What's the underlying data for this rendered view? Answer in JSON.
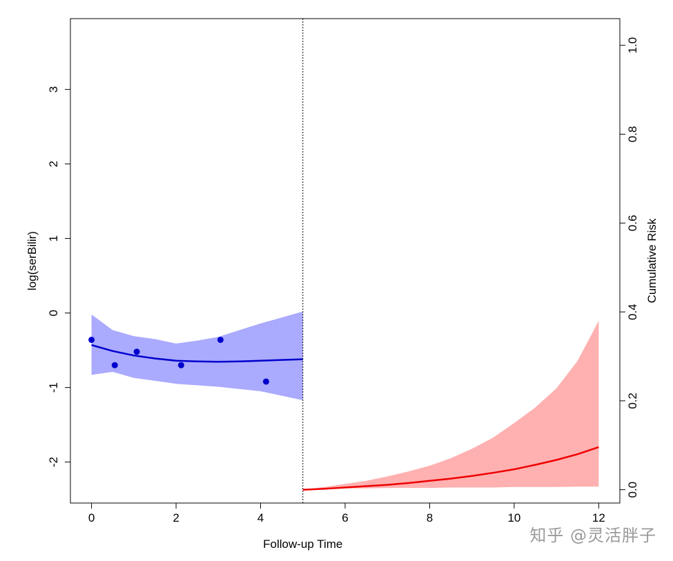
{
  "chart_data": {
    "type": "line",
    "title": "",
    "xlabel": "Follow-up Time",
    "ylabel_left": "log(serBilir)",
    "ylabel_right": "Cumulative Risk",
    "xlim": [
      -0.5,
      12.5
    ],
    "ylim_left": [
      -2.55,
      3.95
    ],
    "ylim_right": [
      -0.03,
      1.06
    ],
    "x_ticks": [
      0,
      2,
      4,
      6,
      8,
      10,
      12
    ],
    "y_ticks_left": [
      -2,
      -1,
      0,
      1,
      2,
      3
    ],
    "y_ticks_right": [
      0.0,
      0.2,
      0.4,
      0.6,
      0.8,
      1.0
    ],
    "y_tick_labels_right": [
      "0.0",
      "0.2",
      "0.4",
      "0.6",
      "0.8",
      "1.0"
    ],
    "cutoff_time": 5,
    "grid": false,
    "observations": {
      "color": "#0000cc",
      "x": [
        0,
        0.55,
        1.07,
        2.12,
        3.05,
        4.13
      ],
      "y": [
        -0.36,
        -0.7,
        -0.52,
        -0.7,
        -0.36,
        -0.92
      ]
    },
    "longitudinal_fit": {
      "color": "#0000cc",
      "band_color": "#aaaaff",
      "x": [
        0,
        0.5,
        1,
        1.5,
        2,
        2.5,
        3,
        3.5,
        4,
        4.5,
        5
      ],
      "y": [
        -0.43,
        -0.51,
        -0.57,
        -0.61,
        -0.64,
        -0.65,
        -0.655,
        -0.65,
        -0.64,
        -0.63,
        -0.62
      ],
      "lower": [
        -0.83,
        -0.79,
        -0.87,
        -0.91,
        -0.95,
        -0.97,
        -0.99,
        -1.02,
        -1.05,
        -1.11,
        -1.17
      ],
      "upper": [
        -0.02,
        -0.23,
        -0.31,
        -0.35,
        -0.41,
        -0.37,
        -0.32,
        -0.23,
        -0.14,
        -0.06,
        0.02
      ]
    },
    "survival_fit": {
      "color": "#ee0000",
      "band_color": "#ffb0b0",
      "x": [
        5,
        5.5,
        6,
        6.5,
        7,
        7.5,
        8,
        8.5,
        9,
        9.5,
        10,
        10.5,
        11,
        11.5,
        12
      ],
      "y": [
        0.0,
        0.002,
        0.005,
        0.008,
        0.011,
        0.015,
        0.02,
        0.025,
        0.031,
        0.038,
        0.046,
        0.056,
        0.067,
        0.08,
        0.096
      ],
      "lower": [
        0.0,
        0.002,
        0.003,
        0.003,
        0.004,
        0.004,
        0.004,
        0.005,
        0.005,
        0.005,
        0.006,
        0.006,
        0.006,
        0.007,
        0.007
      ],
      "upper": [
        0.0,
        0.006,
        0.013,
        0.02,
        0.03,
        0.041,
        0.054,
        0.071,
        0.092,
        0.117,
        0.15,
        0.185,
        0.228,
        0.29,
        0.38
      ]
    }
  },
  "watermark": "知乎 @灵活胖子"
}
